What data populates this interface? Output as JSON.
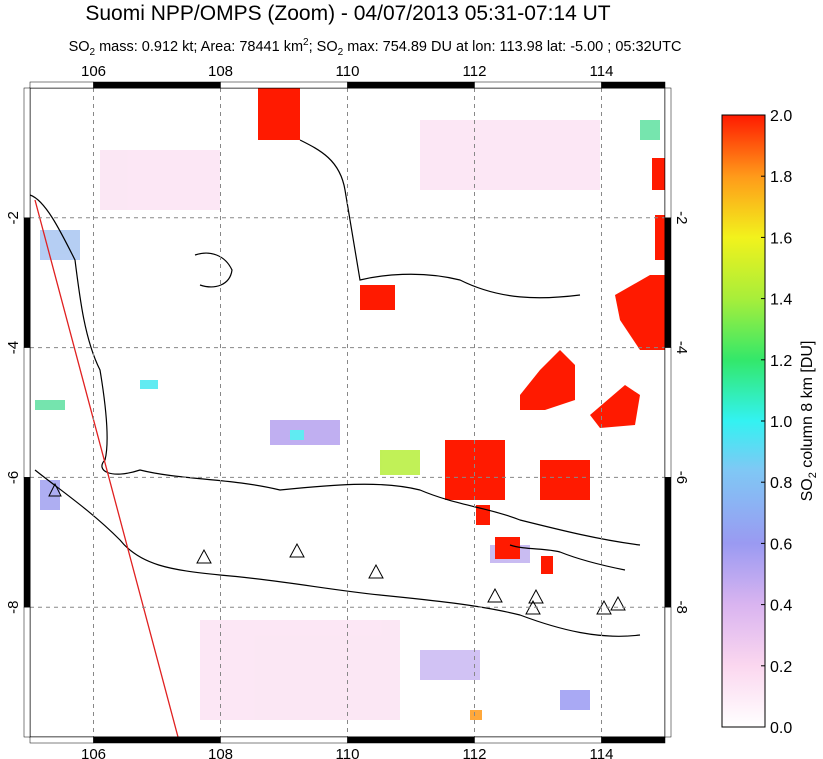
{
  "title": "Suomi NPP/OMPS (Zoom) - 04/07/2013 05:31-07:14 UT",
  "subtitle": [
    "SO",
    "2",
    " mass: 0.912 kt; Area: 78441 km",
    "2",
    "; SO",
    "2",
    " max: 754.89 DU at lon: 113.98 lat: -5.00 ; 05:32UTC"
  ],
  "map": {
    "xlim": [
      105,
      115
    ],
    "ylim": [
      -10,
      0
    ],
    "xticks": [
      106,
      108,
      110,
      112,
      114
    ],
    "yticks": [
      -2,
      -4,
      -6,
      -8
    ],
    "grid": true
  },
  "colorbar": {
    "lim": [
      0,
      2
    ],
    "ticks": [
      {
        "value": 0,
        "label": "0.0"
      },
      {
        "value": 0.2,
        "label": "0.2"
      },
      {
        "value": 0.4,
        "label": "0.4"
      },
      {
        "value": 0.6,
        "label": "0.6"
      },
      {
        "value": 0.8,
        "label": "0.8"
      },
      {
        "value": 1.0,
        "label": "1.0"
      },
      {
        "value": 1.2,
        "label": "1.2"
      },
      {
        "value": 1.4,
        "label": "1.4"
      },
      {
        "value": 1.6,
        "label": "1.6"
      },
      {
        "value": 1.8,
        "label": "1.8"
      },
      {
        "value": 2.0,
        "label": "2.0"
      }
    ],
    "label": [
      "SO",
      "2",
      " column 8 km [DU]"
    ]
  }
}
